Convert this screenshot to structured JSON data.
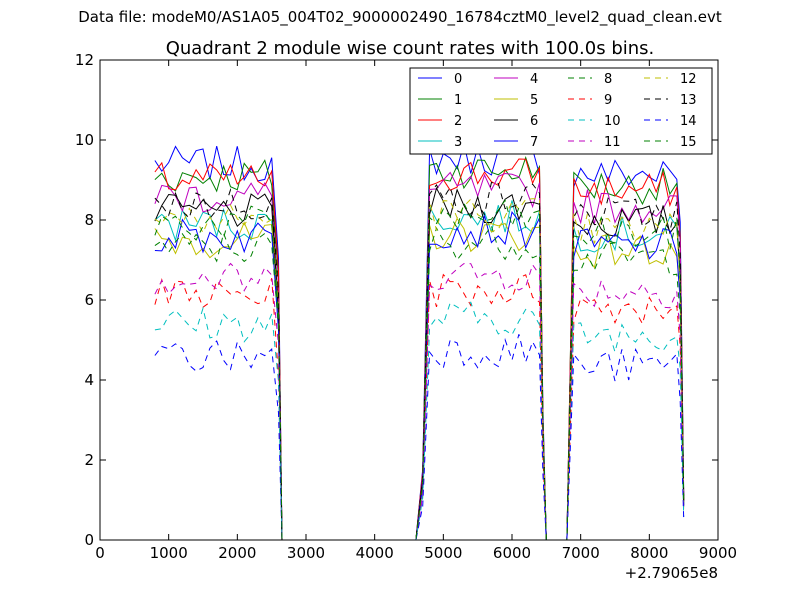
{
  "figure": {
    "suptitle": "Data file: modeM0/AS1A05_004T02_9000002490_16784cztM0_level2_quad_clean.evt"
  },
  "chart_data": {
    "type": "line",
    "title": "Quadrant 2 module wise count rates with 100.0s bins.",
    "xlabel": "",
    "ylabel": "",
    "x_offset_label": "+2.79065e8",
    "xlim": [
      0,
      9000
    ],
    "ylim": [
      0,
      12
    ],
    "xticks": [
      0,
      1000,
      2000,
      3000,
      4000,
      5000,
      6000,
      7000,
      8000,
      9000
    ],
    "yticks": [
      0,
      2,
      4,
      6,
      8,
      10,
      12
    ],
    "grid": false,
    "legend_location": "top-right",
    "legend_columns": 4,
    "x": [
      800,
      900,
      1000,
      1100,
      1200,
      1300,
      1400,
      1500,
      1600,
      1700,
      1800,
      1900,
      2000,
      2100,
      2200,
      2300,
      2400,
      2500,
      2600,
      2650,
      2700,
      3000,
      3500,
      4000,
      4500,
      4600,
      4700,
      4800,
      4900,
      5000,
      5100,
      5200,
      5300,
      5400,
      5500,
      5600,
      5700,
      5800,
      5900,
      6000,
      6100,
      6200,
      6300,
      6400,
      6450,
      6500,
      6800,
      6900,
      7000,
      7100,
      7200,
      7300,
      7400,
      7500,
      7600,
      7700,
      7800,
      7900,
      8000,
      8100,
      8200,
      8300,
      8400,
      8450,
      8500
    ],
    "series": [
      {
        "name": "0",
        "color": "#0000ff",
        "dash": "solid",
        "base": 9.4
      },
      {
        "name": "1",
        "color": "#008000",
        "dash": "solid",
        "base": 9.1
      },
      {
        "name": "2",
        "color": "#ff0000",
        "dash": "solid",
        "base": 9.0
      },
      {
        "name": "3",
        "color": "#00bfbf",
        "dash": "solid",
        "base": 7.9
      },
      {
        "name": "4",
        "color": "#bf00bf",
        "dash": "solid",
        "base": 8.6
      },
      {
        "name": "5",
        "color": "#bfbf00",
        "dash": "solid",
        "base": 7.5
      },
      {
        "name": "6",
        "color": "#000000",
        "dash": "solid",
        "base": 8.2
      },
      {
        "name": "7",
        "color": "#0000ff",
        "dash": "solid",
        "base": 7.6
      },
      {
        "name": "8",
        "color": "#008000",
        "dash": "dashed",
        "base": 7.3
      },
      {
        "name": "9",
        "color": "#ff0000",
        "dash": "dashed",
        "base": 6.1
      },
      {
        "name": "10",
        "color": "#00bfbf",
        "dash": "dashed",
        "base": 5.4
      },
      {
        "name": "11",
        "color": "#bf00bf",
        "dash": "dashed",
        "base": 6.5
      },
      {
        "name": "12",
        "color": "#bfbf00",
        "dash": "dashed",
        "base": 8.0
      },
      {
        "name": "13",
        "color": "#000000",
        "dash": "dashed",
        "base": 8.4
      },
      {
        "name": "14",
        "color": "#0000ff",
        "dash": "dashed",
        "base": 4.6
      },
      {
        "name": "15",
        "color": "#008000",
        "dash": "dashed",
        "base": 7.9
      }
    ]
  }
}
